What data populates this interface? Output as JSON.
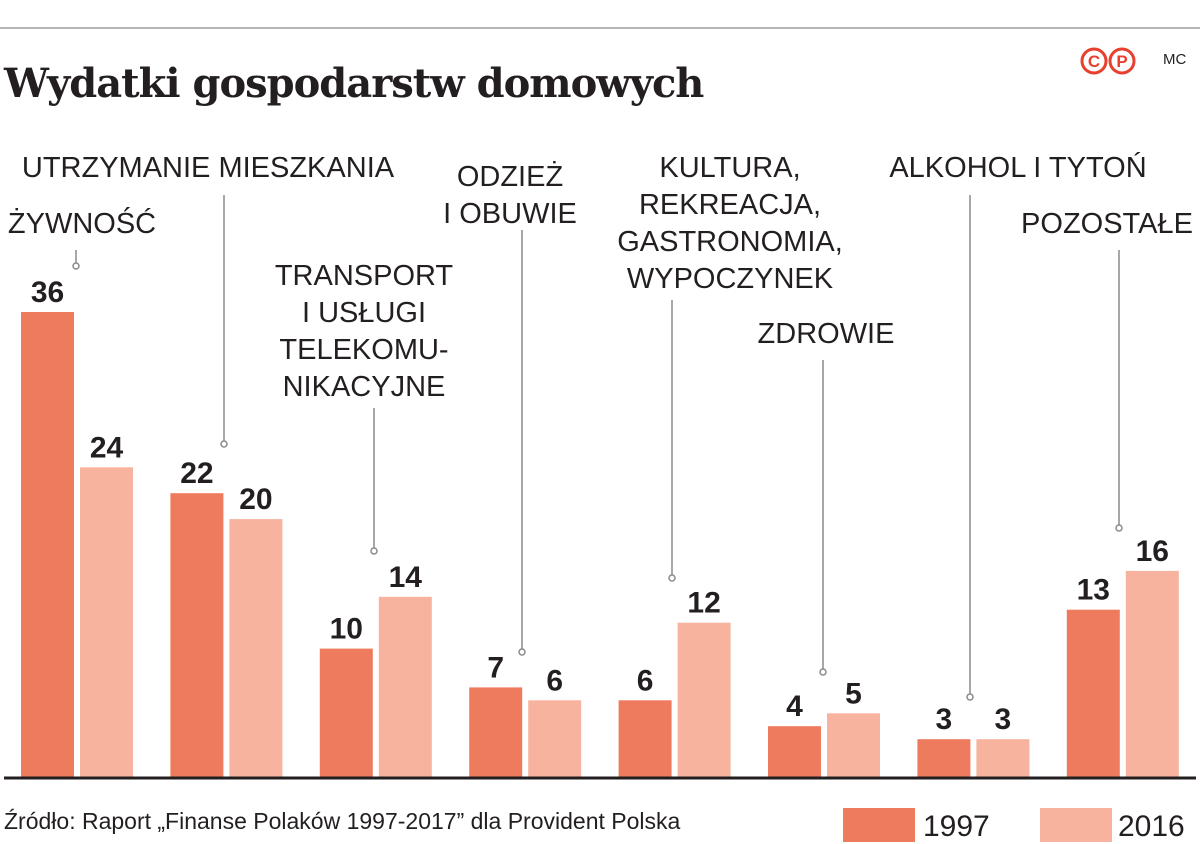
{
  "header": {
    "title": "Wydatki gospodarstw domowych",
    "logo_letters": [
      "C",
      "P"
    ],
    "author": "MC"
  },
  "source": "Źródło: Raport „Finanse Polaków 1997-2017” dla Provident Polska",
  "colors": {
    "series_1997": "#ef7b5e",
    "series_2016": "#f7b39e",
    "logo": "#e8402e",
    "leader": "#8a8a8a",
    "baseline": "#231f20"
  },
  "chart_data": {
    "type": "bar",
    "title": "Wydatki gospodarstw domowych",
    "categories": [
      [
        "ŻYWNOŚĆ"
      ],
      [
        "UTRZYMANIE MIESZKANIA"
      ],
      [
        "TRANSPORT",
        "I USŁUGI",
        "TELEKOMU-",
        "NIKACYJNE"
      ],
      [
        "ODZIEŻ",
        "I OBUWIE"
      ],
      [
        "KULTURA,",
        "REKREACJA,",
        "GASTRONOMIA,",
        "WYPOCZYNEK"
      ],
      [
        "ZDROWIE"
      ],
      [
        "ALKOHOL I TYTOŃ"
      ],
      [
        "POZOSTAŁE"
      ]
    ],
    "series": [
      {
        "name": "1997",
        "values": [
          36,
          22,
          10,
          7,
          6,
          4,
          3,
          13
        ]
      },
      {
        "name": "2016",
        "values": [
          24,
          20,
          14,
          6,
          12,
          5,
          3,
          16
        ]
      }
    ],
    "ylim": [
      0,
      36
    ],
    "grid": false,
    "legend": "bottom-right"
  }
}
